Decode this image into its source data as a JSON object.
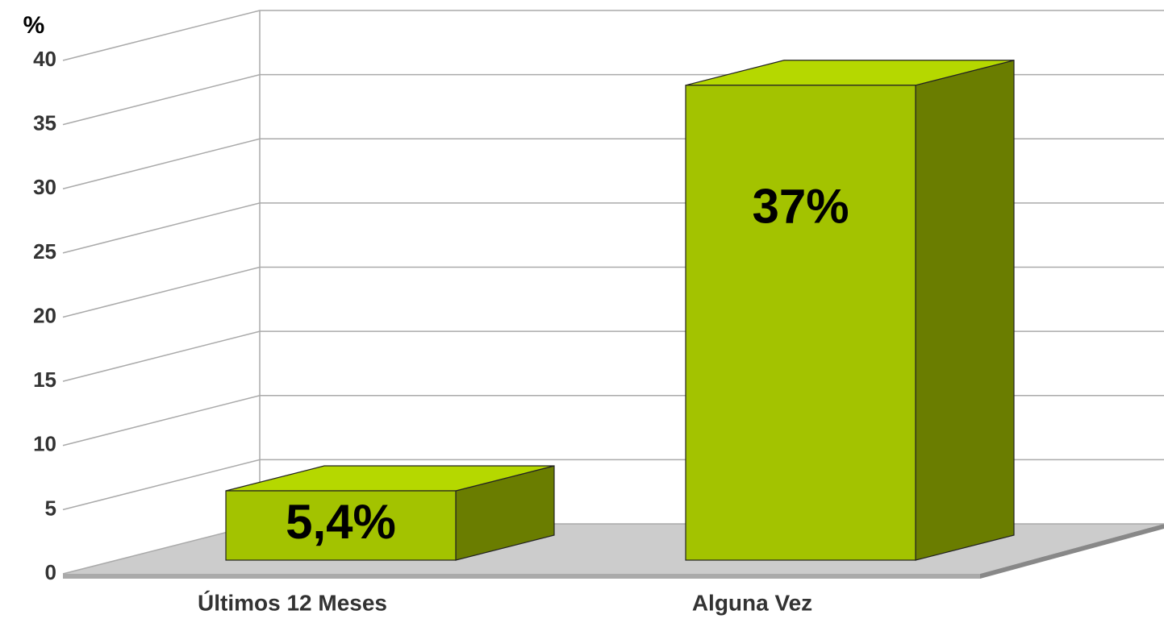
{
  "chart_data": {
    "type": "bar3d",
    "y_label": "%",
    "categories": [
      "Últimos 12 Meses",
      "Alguna Vez"
    ],
    "values": [
      5.4,
      37
    ],
    "value_labels": [
      "5,4%",
      "37%"
    ],
    "colors": {
      "front": "#a3c300",
      "top": "#b5d800",
      "side": "#6a7d00"
    },
    "ylim": [
      0,
      40
    ],
    "yticks": [
      0,
      5,
      10,
      15,
      20,
      25,
      30,
      35,
      40
    ],
    "grid": true
  }
}
